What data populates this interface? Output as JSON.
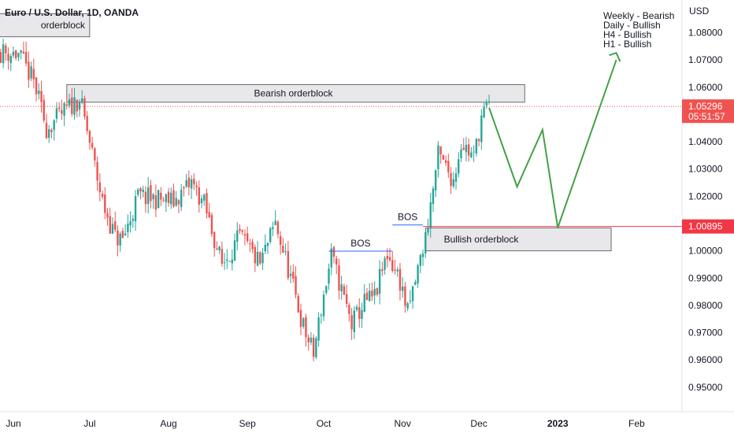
{
  "header": {
    "title": "Euro / U.S. Dollar, 1D, OANDA",
    "currency": "USD"
  },
  "notes": [
    "Weekly - Bearish",
    "Daily - Bullish",
    "H4 - Bullish",
    "H1 - Bullish"
  ],
  "price_tags": {
    "current": {
      "price": "1.05296",
      "countdown": "05:51:57",
      "color": "#ef5350"
    },
    "level": {
      "price": "1.00895",
      "color": "#f23645"
    }
  },
  "colors": {
    "up": "#26a69a",
    "down": "#ef5350",
    "projection": "#43a047",
    "bos_line": "#2962ff",
    "level_line": "#f23645"
  },
  "chart_data": {
    "type": "candlestick",
    "ylim": [
      0.941,
      1.092
    ],
    "y_ticks": [
      0.95,
      0.96,
      0.97,
      0.98,
      0.99,
      1.0,
      1.01,
      1.02,
      1.03,
      1.04,
      1.06,
      1.07,
      1.08
    ],
    "y_tick_labels": [
      "0.95000",
      "0.96000",
      "0.97000",
      "0.98000",
      "0.99000",
      "1.00000",
      "1.01000",
      "1.02000",
      "1.03000",
      "1.04000",
      "1.06000",
      "1.07000",
      "1.08000"
    ],
    "x_labels": [
      {
        "label": "Jun",
        "date": "2022-06-01",
        "bold": false
      },
      {
        "label": "Jul",
        "date": "2022-07-01",
        "bold": false
      },
      {
        "label": "Aug",
        "date": "2022-08-01",
        "bold": false
      },
      {
        "label": "Sep",
        "date": "2022-09-01",
        "bold": false
      },
      {
        "label": "Oct",
        "date": "2022-10-01",
        "bold": false
      },
      {
        "label": "Nov",
        "date": "2022-11-01",
        "bold": false
      },
      {
        "label": "Dec",
        "date": "2022-12-01",
        "bold": false
      },
      {
        "label": "2023",
        "date": "2023-01-01",
        "bold": true
      },
      {
        "label": "Feb",
        "date": "2023-02-01",
        "bold": false
      }
    ],
    "price_path": {
      "dates": [
        "2022-05-27",
        "2022-06-03",
        "2022-06-09",
        "2022-06-14",
        "2022-06-20",
        "2022-06-27",
        "2022-06-30",
        "2022-07-06",
        "2022-07-11",
        "2022-07-14",
        "2022-07-20",
        "2022-07-27",
        "2022-08-03",
        "2022-08-10",
        "2022-08-15",
        "2022-08-22",
        "2022-08-29",
        "2022-09-06",
        "2022-09-12",
        "2022-09-16",
        "2022-09-23",
        "2022-09-27",
        "2022-09-30",
        "2022-10-04",
        "2022-10-12",
        "2022-10-17",
        "2022-10-21",
        "2022-10-26",
        "2022-10-31",
        "2022-11-03",
        "2022-11-10",
        "2022-11-15",
        "2022-11-21",
        "2022-11-24",
        "2022-11-29",
        "2022-12-02",
        "2022-12-05"
      ],
      "closes": [
        1.073,
        1.072,
        1.062,
        1.045,
        1.05,
        1.056,
        1.044,
        1.018,
        1.005,
        1.004,
        1.02,
        1.019,
        1.018,
        1.025,
        1.017,
        0.995,
        1.005,
        0.995,
        1.01,
        0.997,
        0.972,
        0.962,
        0.979,
        0.998,
        0.973,
        0.981,
        0.983,
        0.999,
        0.989,
        0.977,
        1.005,
        1.035,
        1.026,
        1.04,
        1.034,
        1.049,
        1.053
      ]
    },
    "order_blocks": [
      {
        "label": "orderblock",
        "start": "2022-05-09",
        "end": "2022-07-01",
        "top": 1.087,
        "bottom": 1.0785
      },
      {
        "label": "Bearish orderblock",
        "start": "2022-06-22",
        "end": "2022-12-19",
        "top": 1.061,
        "bottom": 1.0545
      },
      {
        "label": "Bullish orderblock",
        "start": "2022-11-10",
        "end": "2023-01-22",
        "top": 1.0084,
        "bottom": 1.0
      }
    ],
    "bos": [
      {
        "label": "BOS",
        "start": "2022-10-03",
        "end": "2022-10-28",
        "price": 0.9999
      },
      {
        "label": "BOS",
        "start": "2022-10-28",
        "end": "2022-11-09",
        "price": 1.0095
      }
    ],
    "horizontal_levels": [
      1.05296,
      1.00895
    ],
    "projection": {
      "dates": [
        "2022-12-05",
        "2022-12-16",
        "2022-12-26",
        "2023-01-01",
        "2023-01-24"
      ],
      "prices": [
        1.0525,
        1.0235,
        1.0444,
        1.0085,
        1.07
      ],
      "arrow_tip": {
        "date": "2023-01-24",
        "price": 1.0726
      }
    }
  }
}
